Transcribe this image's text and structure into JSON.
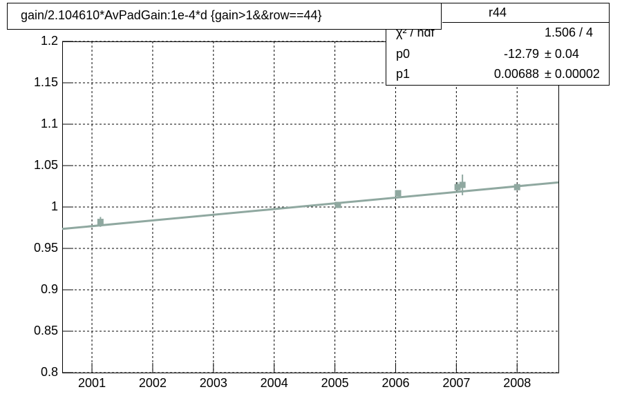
{
  "chart_data": {
    "type": "scatter",
    "title": "gain/2.104610*AvPadGain:1e-4*d  {gain>1&&row==44}",
    "x": [
      2001.14,
      2005.05,
      2006.04,
      2007.02,
      2007.1,
      2008.0
    ],
    "values": [
      0.982,
      1.0025,
      1.0167,
      1.024,
      1.0267,
      1.024
    ],
    "errors": [
      0.006,
      0.003,
      0.003,
      0.006,
      0.0125,
      0.003
    ],
    "color": "#8fa8a0",
    "xlim": [
      2000.51,
      2008.68
    ],
    "xticks": [
      2001,
      2002,
      2003,
      2004,
      2005,
      2006,
      2007,
      2008
    ],
    "ylim": [
      0.8,
      1.2
    ],
    "yticks": [
      0.8,
      0.85,
      0.9,
      0.95,
      1,
      1.05,
      1.1,
      1.15,
      1.2
    ],
    "grid": true,
    "stats": {
      "name": "r44",
      "entries": [
        {
          "name": "χ² / ndf",
          "text": "1.506 / 4"
        },
        {
          "name": "p0",
          "value": -12.79,
          "error": {
            "value": 0.04,
            "label": "± 0.04"
          }
        },
        {
          "name": "p1",
          "value": 0.00688,
          "error": {
            "value": 2e-05,
            "label": "± 0.00002"
          }
        }
      ]
    }
  }
}
